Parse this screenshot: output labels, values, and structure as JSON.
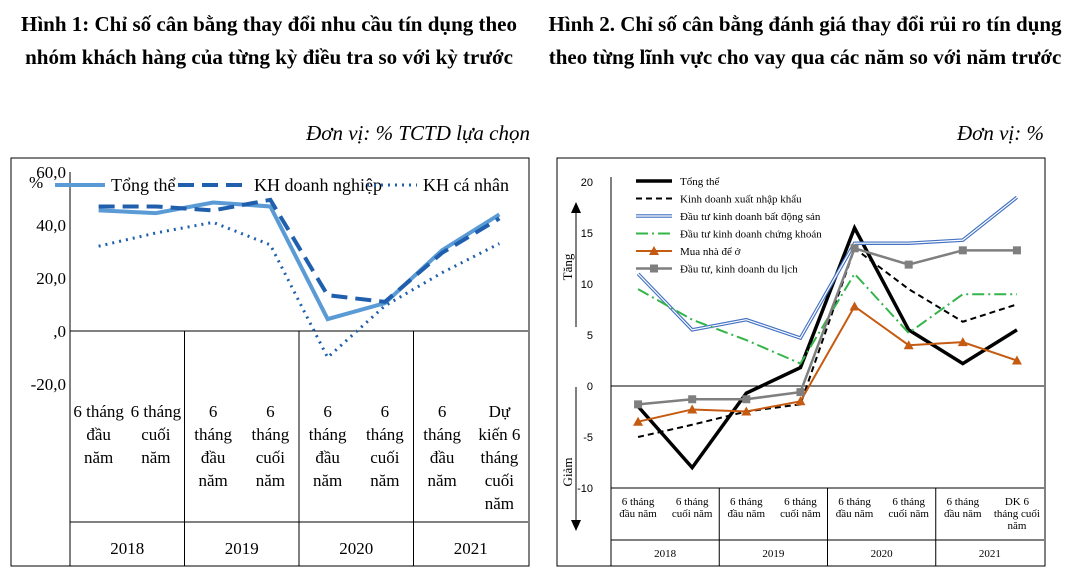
{
  "figure1": {
    "title": "Hình 1:  Chỉ số cân bằng thay đổi nhu cầu tín dụng theo nhóm khách hàng của từng kỳ điều tra so với kỳ trước",
    "unit": "Đơn vị: % TCTD lựa chọn"
  },
  "figure2": {
    "title": "Hình 2. Chỉ số cân bằng đánh giá thay đổi rủi ro tín dụng theo từng lĩnh vực cho vay qua các năm so với năm trước",
    "unit": "Đơn vị: %"
  },
  "colors": {
    "blue_light": "#5b9bd5",
    "blue_dark": "#1f5fad",
    "green": "#33b54a",
    "orange": "#c55a11",
    "gray": "#7f7f7f",
    "navy_outline": "#4472c4"
  },
  "chart_data": [
    {
      "type": "line",
      "y_unit_label": "%",
      "ylim": [
        -20,
        60
      ],
      "y_ticks": [
        "60,0",
        "40,0",
        "20,0",
        ",0",
        "-20,0"
      ],
      "y_tick_values": [
        60,
        40,
        20,
        0,
        -20
      ],
      "category_labels": [
        [
          "6 tháng",
          "đầu",
          "năm"
        ],
        [
          "6 tháng",
          "cuối",
          "năm"
        ],
        [
          "6",
          "tháng",
          "đầu",
          "năm"
        ],
        [
          "6",
          "tháng",
          "cuối",
          "năm"
        ],
        [
          "6",
          "tháng",
          "đầu",
          "năm"
        ],
        [
          "6",
          "tháng",
          "cuối",
          "năm"
        ],
        [
          "6",
          "tháng",
          "đầu",
          "năm"
        ],
        [
          "Dự",
          "kiến 6",
          "tháng",
          "cuối",
          "năm"
        ]
      ],
      "years": [
        "2018",
        "2019",
        "2020",
        "2021"
      ],
      "legend": [
        "Tổng thể",
        "KH doanh nghiệp",
        "KH cá nhân"
      ],
      "series": [
        {
          "name": "Tổng thể",
          "values": [
            45.5,
            44.5,
            48.5,
            47,
            4.5,
            10.5,
            30.5,
            44
          ]
        },
        {
          "name": "KH doanh nghiệp",
          "values": [
            47,
            47,
            45.5,
            49.5,
            13.5,
            11,
            29.5,
            42.5
          ]
        },
        {
          "name": "KH cá nhân",
          "values": [
            32,
            37,
            41,
            32.5,
            -10,
            9.5,
            22,
            33
          ]
        }
      ]
    },
    {
      "type": "line",
      "ylim": [
        -10,
        20
      ],
      "y_ticks": [
        "20",
        "15",
        "10",
        "5",
        "0",
        "-5",
        "-10"
      ],
      "y_tick_values": [
        20,
        15,
        10,
        5,
        0,
        -5,
        -10
      ],
      "axis_up_label": "Tăng",
      "axis_down_label": "Giảm",
      "category_labels": [
        [
          "6 tháng",
          "đầu năm"
        ],
        [
          "6 tháng",
          "cuối năm"
        ],
        [
          "6 tháng",
          "đầu năm"
        ],
        [
          "6 tháng",
          "cuối năm"
        ],
        [
          "6 tháng",
          "đầu năm"
        ],
        [
          "6 tháng",
          "cuối năm"
        ],
        [
          "6 tháng",
          "đầu năm"
        ],
        [
          "DK 6",
          "tháng cuối",
          "năm"
        ]
      ],
      "years": [
        "2018",
        "2019",
        "2020",
        "2021"
      ],
      "legend": [
        "Tổng thể",
        "Kinh doanh xuất nhập khẩu",
        "Đầu tư kinh doanh bất động sản",
        "Đầu tư kinh doanh chứng khoán",
        "Mua nhà để ở",
        "Đầu tư, kinh doanh du lịch"
      ],
      "series": [
        {
          "name": "Tổng thể",
          "values": [
            -2,
            -8,
            -0.7,
            1.8,
            15.5,
            5.5,
            2.2,
            5.5
          ]
        },
        {
          "name": "Kinh doanh xuất nhập khẩu",
          "values": [
            -5,
            -3.8,
            -2.5,
            -1.8,
            13.5,
            9.5,
            6.3,
            8
          ]
        },
        {
          "name": "Đầu tư kinh doanh bất động sản",
          "values": [
            11,
            5.5,
            6.5,
            4.7,
            14,
            14,
            14.3,
            18.5
          ]
        },
        {
          "name": "Đầu tư kinh doanh chứng khoán",
          "values": [
            9.5,
            6.5,
            4.5,
            2.2,
            11,
            5.2,
            9,
            9
          ]
        },
        {
          "name": "Mua nhà để ở",
          "values": [
            -3.5,
            -2.3,
            -2.5,
            -1.5,
            7.8,
            4,
            4.3,
            2.5
          ]
        },
        {
          "name": "Đầu tư, kinh doanh du lịch",
          "values": [
            -1.8,
            -1.3,
            -1.3,
            -0.6,
            13.5,
            11.9,
            13.3,
            13.3
          ]
        }
      ]
    }
  ]
}
